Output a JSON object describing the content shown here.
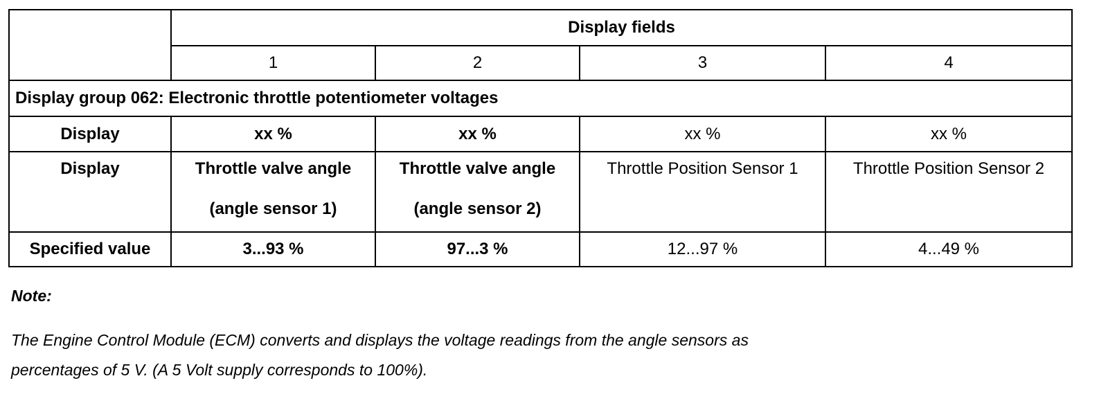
{
  "table": {
    "header": {
      "title": "Display fields",
      "columns": [
        "1",
        "2",
        "3",
        "4"
      ]
    },
    "group": "Display group 062: Electronic throttle potentiometer voltages",
    "rows": [
      [
        "Display",
        "xx %",
        "xx %",
        "xx %",
        "xx %"
      ],
      [
        "Display",
        [
          "Throttle valve angle",
          "(angle sensor 1)"
        ],
        [
          "Throttle valve angle",
          "(angle sensor 2)"
        ],
        "Throttle Position Sensor 1",
        "Throttle Position Sensor 2"
      ],
      [
        "Specified value",
        "3...93 %",
        "97...3 %",
        "12...97 %",
        "4...49 %"
      ]
    ]
  },
  "note": {
    "title": "Note:",
    "lines": [
      "The Engine Control Module (ECM) converts and displays the voltage readings from the angle sensors as",
      "percentages of 5 V. (A 5 Volt supply corresponds to 100%)."
    ]
  }
}
